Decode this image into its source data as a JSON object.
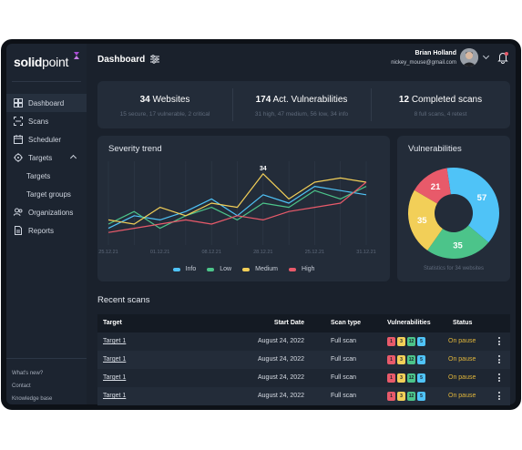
{
  "brand": {
    "name_bold": "solid",
    "name_light": "point"
  },
  "sidebar": {
    "items": [
      {
        "label": "Dashboard",
        "icon": "dashboard-icon",
        "active": true
      },
      {
        "label": "Scans",
        "icon": "scan-icon"
      },
      {
        "label": "Scheduler",
        "icon": "calendar-icon"
      },
      {
        "label": "Targets",
        "icon": "target-icon"
      },
      {
        "label": "Targets",
        "sub": true
      },
      {
        "label": "Target groups",
        "sub": true
      },
      {
        "label": "Organizations",
        "icon": "users-icon"
      },
      {
        "label": "Reports",
        "icon": "report-icon"
      }
    ],
    "footer": [
      "What's new?",
      "Contact",
      "Knowledge base"
    ]
  },
  "header": {
    "title": "Dashboard",
    "user_name": "Brian Holland",
    "user_email": "nickey_mouse@gmail.com"
  },
  "stats": [
    {
      "value": "34",
      "label": "Websites",
      "detail": "15 secure, 17 vulnerable, 2 critical"
    },
    {
      "value": "174",
      "label": "Act. Vulnerabilities",
      "detail": "31 high, 47 medium, 56 low, 34 info"
    },
    {
      "value": "12",
      "label": "Completed scans",
      "detail": "8 full scans, 4 retest"
    }
  ],
  "severity_trend": {
    "title": "Severity trend",
    "peak_label": "34",
    "legend": [
      {
        "name": "Info",
        "color": "#4fc3f7"
      },
      {
        "name": "Low",
        "color": "#4cc48a"
      },
      {
        "name": "Medium",
        "color": "#f2cf58"
      },
      {
        "name": "High",
        "color": "#e85a6a"
      }
    ]
  },
  "chart_data": {
    "type": "line",
    "title": "Severity trend",
    "x": [
      "25.12.21",
      "",
      "01.12.21",
      "",
      "08.12.21",
      "",
      "28.12.21",
      "",
      "25.12.21",
      "",
      "31.12.21"
    ],
    "ylim": [
      0,
      40
    ],
    "grid": true,
    "legend_position": "bottom",
    "series": [
      {
        "name": "Info",
        "values": [
          8,
          14,
          12,
          16,
          22,
          14,
          24,
          20,
          28,
          26,
          24
        ]
      },
      {
        "name": "Low",
        "values": [
          10,
          16,
          8,
          14,
          18,
          12,
          20,
          18,
          26,
          22,
          28
        ]
      },
      {
        "name": "Medium",
        "values": [
          12,
          10,
          18,
          14,
          20,
          18,
          34,
          22,
          30,
          32,
          30
        ]
      },
      {
        "name": "High",
        "values": [
          6,
          8,
          10,
          12,
          10,
          14,
          12,
          16,
          18,
          20,
          30
        ]
      }
    ]
  },
  "vulnerabilities": {
    "title": "Vulnerabilities",
    "note": "Statistics for 34 websites",
    "chart_data": {
      "type": "pie",
      "slices": [
        {
          "label": "57",
          "value": 57,
          "color": "#4fc3f7"
        },
        {
          "label": "35",
          "value": 35,
          "color": "#4cc48a"
        },
        {
          "label": "35",
          "value": 35,
          "color": "#f2cf58"
        },
        {
          "label": "21",
          "value": 21,
          "color": "#e85a6a"
        }
      ]
    }
  },
  "recent_scans": {
    "title": "Recent scans",
    "columns": [
      "Target",
      "Start Date",
      "Scan type",
      "Vulnerabilities",
      "Status"
    ],
    "badge_colors": [
      "#e85a6a",
      "#f2cf58",
      "#4cc48a",
      "#4fc3f7"
    ],
    "rows": [
      {
        "target": "Target 1",
        "date": "August 24, 2022",
        "type": "Full scan",
        "vulns": [
          "1",
          "3",
          "12",
          "5"
        ],
        "status": "On pause"
      },
      {
        "target": "Target 1",
        "date": "August 24, 2022",
        "type": "Full scan",
        "vulns": [
          "1",
          "3",
          "12",
          "5"
        ],
        "status": "On pause"
      },
      {
        "target": "Target 1",
        "date": "August 24, 2022",
        "type": "Full scan",
        "vulns": [
          "1",
          "3",
          "12",
          "5"
        ],
        "status": "On pause"
      },
      {
        "target": "Target 1",
        "date": "August 24, 2022",
        "type": "Full scan",
        "vulns": [
          "1",
          "3",
          "12",
          "5"
        ],
        "status": "On pause"
      }
    ]
  }
}
